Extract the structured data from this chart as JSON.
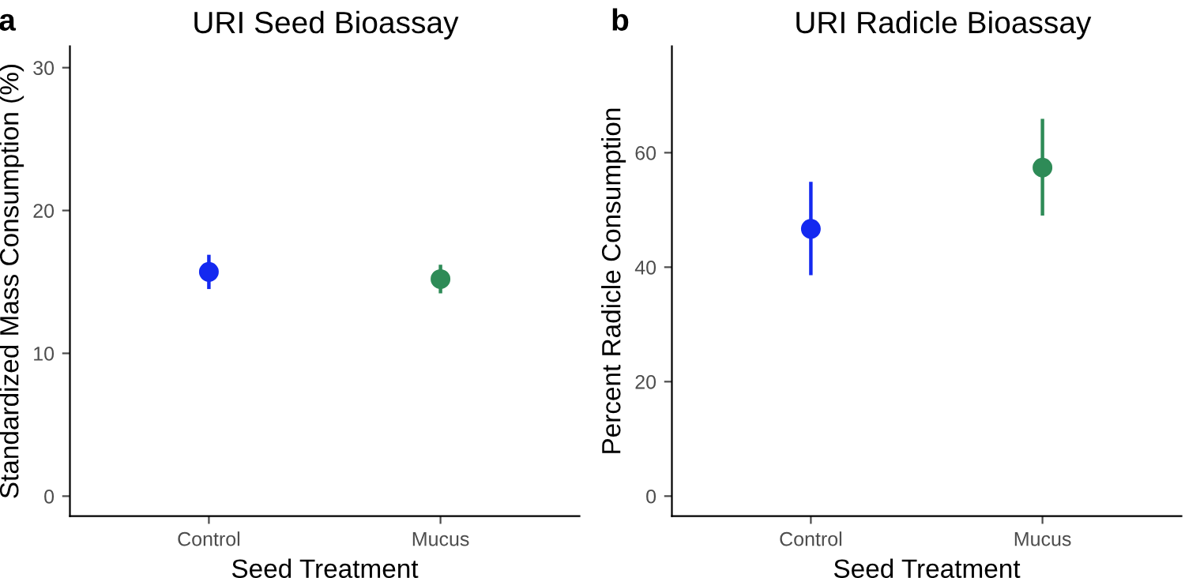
{
  "chart_data": [
    {
      "type": "scatter",
      "title": "URI Seed Bioassay",
      "annotations": [
        "a"
      ],
      "xlabel": "Seed Treatment",
      "ylabel": "Standardized Mass Consumption (%)",
      "categories": [
        "Control",
        "Mucus"
      ],
      "values": [
        15.7,
        15.2
      ],
      "errors": [
        [
          14.5,
          16.9
        ],
        [
          14.2,
          16.2
        ]
      ],
      "colors": [
        "#1429f0",
        "#2e8b57"
      ],
      "ylim": [
        -1.4,
        31.5
      ],
      "yticks": [
        0,
        10,
        20,
        30
      ],
      "marker": "circle",
      "grid": false,
      "legend": false
    },
    {
      "type": "scatter",
      "title": "URI Radicle Bioassay",
      "annotations": [
        "b"
      ],
      "xlabel": "Seed Treatment",
      "ylabel": "Percent Radicle Consumption",
      "categories": [
        "Control",
        "Mucus"
      ],
      "values": [
        46.7,
        57.4
      ],
      "errors": [
        [
          38.6,
          54.9
        ],
        [
          49.0,
          65.9
        ]
      ],
      "colors": [
        "#1429f0",
        "#2e8b57"
      ],
      "ylim": [
        -3.5,
        78.6
      ],
      "yticks": [
        0,
        20,
        40,
        60
      ],
      "marker": "circle",
      "grid": false,
      "legend": false
    }
  ]
}
